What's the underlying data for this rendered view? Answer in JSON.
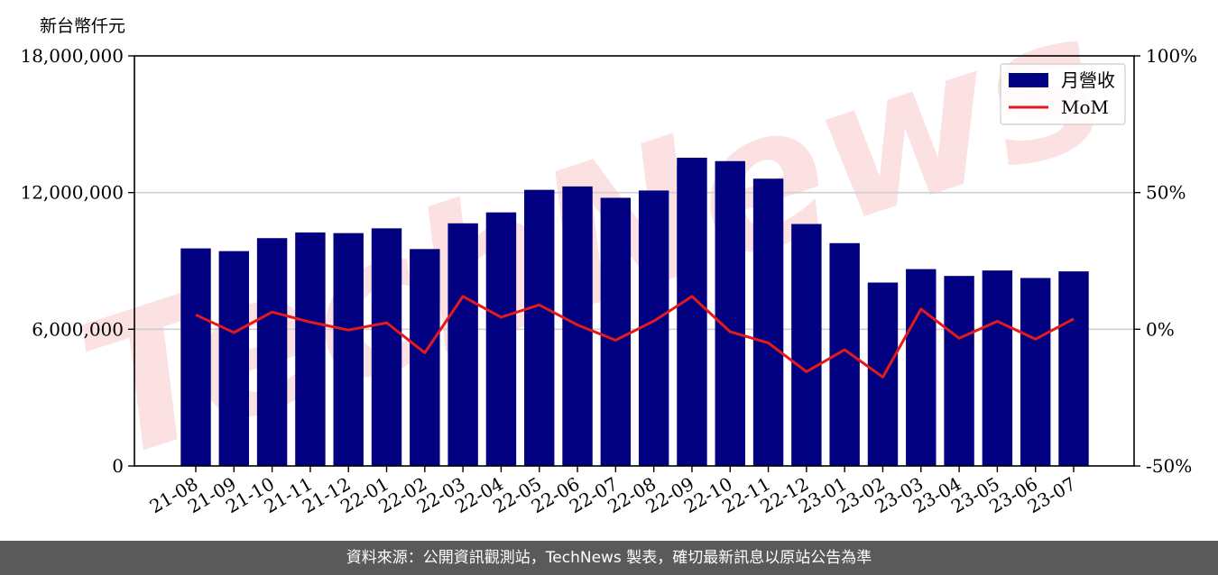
{
  "unit_label": "新台幣仟元",
  "footer_text": "資料來源：公開資訊觀測站，TechNews 製表，確切最新訊息以原站公告為準",
  "watermark_text": "TechNews",
  "colors": {
    "bar": "#000080",
    "line": "#e31a1c",
    "footer_bg": "#5a5a5a",
    "watermark": "#f7c9c9"
  },
  "chart_data": {
    "type": "bar",
    "categories": [
      "21-08",
      "21-09",
      "21-10",
      "21-11",
      "21-12",
      "22-01",
      "22-02",
      "22-03",
      "22-04",
      "22-05",
      "22-06",
      "22-07",
      "22-08",
      "22-09",
      "22-10",
      "22-11",
      "22-12",
      "23-01",
      "23-02",
      "23-03",
      "23-04",
      "23-05",
      "23-06",
      "23-07"
    ],
    "series": [
      {
        "name": "月營收",
        "type": "bar",
        "axis": "left",
        "values": [
          9550000,
          9430000,
          10000000,
          10250000,
          10220000,
          10430000,
          9520000,
          10650000,
          11130000,
          12120000,
          12270000,
          11770000,
          12090000,
          13530000,
          13380000,
          12610000,
          10620000,
          9780000,
          8050000,
          8640000,
          8340000,
          8580000,
          8250000,
          8540000
        ]
      },
      {
        "name": "MoM",
        "type": "line",
        "axis": "right",
        "values": [
          5.3,
          -1.2,
          6.3,
          2.6,
          -0.3,
          2.4,
          -8.6,
          12.0,
          4.4,
          8.9,
          1.6,
          -4.0,
          3.0,
          12.0,
          -0.9,
          -5.0,
          -15.5,
          -7.5,
          -17.5,
          7.4,
          -3.3,
          2.9,
          -3.6,
          3.8
        ]
      }
    ],
    "y_left": {
      "range": [
        0,
        18000000
      ],
      "ticks": [
        "0",
        "6,000,000",
        "12,000,000",
        "18,000,000"
      ],
      "tick_values": [
        0,
        6000000,
        12000000,
        18000000
      ]
    },
    "y_right": {
      "range": [
        -50,
        100
      ],
      "ticks": [
        "-50%",
        "0%",
        "50%",
        "100%"
      ],
      "tick_values": [
        -50,
        0,
        50,
        100
      ]
    },
    "grid": "horizontal",
    "legend_position": "top-right"
  }
}
